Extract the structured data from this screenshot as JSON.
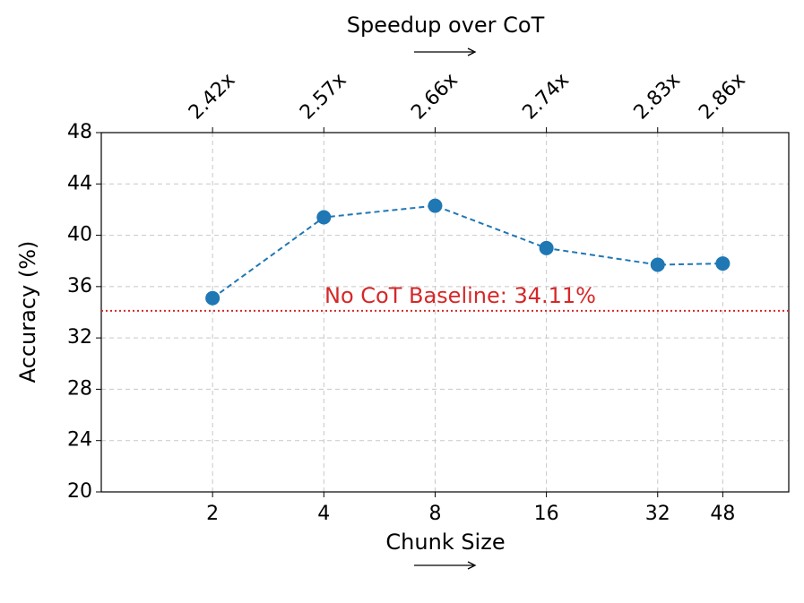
{
  "chart_data": {
    "type": "line",
    "x_label": "Chunk Size",
    "y_label": "Accuracy (%)",
    "top_axis_label": "Speedup over CoT",
    "x": [
      2,
      4,
      8,
      16,
      32,
      48
    ],
    "values": [
      35.1,
      41.4,
      42.3,
      39.0,
      37.7,
      37.8
    ],
    "color": "#1f77b4",
    "xscale": "log2",
    "xlim": [
      1,
      72.4
    ],
    "xticks": [
      2,
      4,
      8,
      16,
      32,
      48
    ],
    "top_xticks": [
      {
        "value": 2,
        "label": "2.42x"
      },
      {
        "value": 4,
        "label": "2.57x"
      },
      {
        "value": 8,
        "label": "2.66x"
      },
      {
        "value": 16,
        "label": "2.74x"
      },
      {
        "value": 32,
        "label": "2.83x"
      },
      {
        "value": 48,
        "label": "2.86x"
      }
    ],
    "ylim": [
      20,
      48
    ],
    "yticks": [
      20,
      24,
      28,
      32,
      36,
      40,
      44,
      48
    ],
    "grid": true,
    "baseline": {
      "value": 34.11,
      "label": "No CoT Baseline: 34.11%",
      "color": "#d62728"
    }
  }
}
